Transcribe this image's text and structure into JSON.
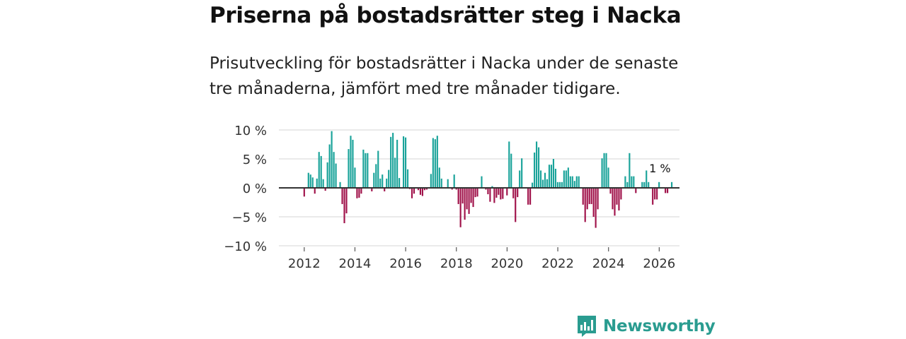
{
  "title": "Priserna på bostadsrätter steg i Nacka",
  "subtitle": "Prisutveckling för bostadsrätter i Nacka under de senaste tre månaderna, jämfört med tre månader tidigare.",
  "brand": {
    "name": "Newsworthy"
  },
  "colors": {
    "positive": "#1aa39a",
    "negative": "#a0124a",
    "zero_line": "#333333",
    "grid": "#dddddd",
    "brand": "#2a9c90"
  },
  "chart_data": {
    "type": "bar",
    "title": "Priserna på bostadsrätter steg i Nacka",
    "xlabel": "",
    "ylabel": "",
    "ylim": [
      -10,
      10
    ],
    "xlim": [
      2011.0,
      2026.8
    ],
    "grid": true,
    "y_ticks": [
      {
        "value": 10,
        "label": "10 %"
      },
      {
        "value": 5,
        "label": "5 %"
      },
      {
        "value": 0,
        "label": "0 %"
      },
      {
        "value": -5,
        "label": "−5 %"
      },
      {
        "value": -10,
        "label": "−10 %"
      }
    ],
    "x_ticks": [
      {
        "value": 2012,
        "label": "2012"
      },
      {
        "value": 2014,
        "label": "2014"
      },
      {
        "value": 2016,
        "label": "2016"
      },
      {
        "value": 2018,
        "label": "2018"
      },
      {
        "value": 2020,
        "label": "2020"
      },
      {
        "value": 2022,
        "label": "2022"
      },
      {
        "value": 2024,
        "label": "2024"
      },
      {
        "value": 2026,
        "label": "2026"
      }
    ],
    "x_start": 2012.0,
    "x_step": 0.0833,
    "values": [
      -1.5,
      0,
      2.6,
      2.3,
      1.8,
      -1.0,
      1.6,
      6.2,
      5.5,
      1.5,
      -0.5,
      4.4,
      7.5,
      9.8,
      6.2,
      4.2,
      0,
      1.0,
      -2.8,
      -6.1,
      -4.4,
      6.7,
      9.0,
      8.3,
      3.5,
      -1.8,
      -1.7,
      -1.0,
      6.6,
      6.0,
      6.0,
      0,
      -0.6,
      2.6,
      4.1,
      6.4,
      1.6,
      2.3,
      -0.6,
      1.6,
      3.1,
      8.8,
      9.5,
      5.2,
      8.3,
      1.7,
      0,
      8.9,
      8.7,
      3.2,
      -0.2,
      -1.8,
      -1.0,
      0,
      -0.4,
      -1.2,
      -1.4,
      -0.4,
      -0.3,
      0,
      2.4,
      8.6,
      8.4,
      9.0,
      3.5,
      1.6,
      0,
      0,
      1.5,
      0,
      -0.3,
      2.3,
      -0.3,
      -2.8,
      -6.8,
      -2.7,
      -5.5,
      -3.7,
      -4.5,
      -2.6,
      -3.3,
      -1.6,
      -1.5,
      0,
      2.0,
      0,
      -0.3,
      -1.1,
      -2.4,
      0.3,
      -2.6,
      -1.7,
      -1.2,
      -2.0,
      -1.9,
      0,
      -1.3,
      8.0,
      5.9,
      -1.8,
      -5.9,
      -1.6,
      3.0,
      5.1,
      0,
      0,
      -2.9,
      -2.9,
      0.9,
      6.1,
      8.0,
      7.0,
      3.0,
      1.4,
      2.6,
      1.5,
      4.0,
      4.0,
      5.0,
      3.3,
      1.0,
      1.0,
      1.0,
      3.0,
      3.0,
      3.5,
      2.0,
      2.0,
      1.2,
      2.0,
      2.0,
      0,
      -2.9,
      -5.9,
      -3.7,
      -2.8,
      -2.8,
      -5.0,
      -6.9,
      -3.7,
      0,
      5.1,
      6.0,
      6.0,
      3.5,
      -1.0,
      -3.7,
      -4.8,
      -2.9,
      -3.9,
      -2.0,
      0,
      2.0,
      1.0,
      6.0,
      2.0,
      2.0,
      -0.9,
      0,
      0,
      1.0,
      1.0,
      3.0,
      1.0,
      0,
      -2.9,
      -2.0,
      -2.0,
      1.0,
      0,
      0,
      -0.9,
      -0.9,
      0,
      1.0
    ],
    "annotations": [
      {
        "x": 2026.0,
        "y": 1.0,
        "label": "1 %"
      }
    ]
  }
}
